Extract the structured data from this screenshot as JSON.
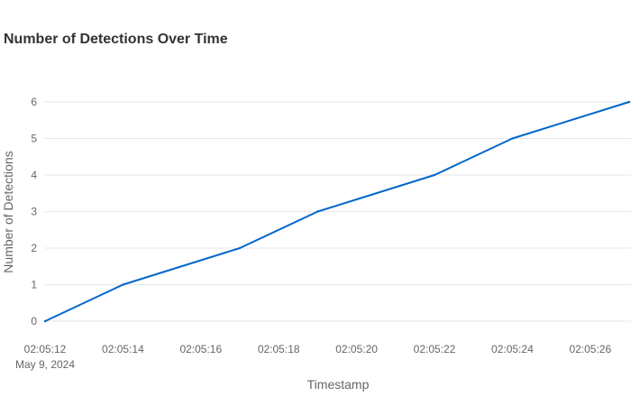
{
  "chart_data": {
    "type": "line",
    "title": "Number of Detections Over Time",
    "xlabel": "Timestamp",
    "ylabel": "Number of Detections",
    "x": [
      "02:05:12",
      "02:05:14",
      "02:05:17",
      "02:05:19",
      "02:05:22",
      "02:05:24",
      "02:05:27"
    ],
    "series": [
      {
        "values": [
          0,
          1,
          2,
          3,
          4,
          5,
          6
        ]
      }
    ],
    "x_ticks": [
      "02:05:12",
      "02:05:14",
      "02:05:16",
      "02:05:18",
      "02:05:20",
      "02:05:22",
      "02:05:24",
      "02:05:26"
    ],
    "x_date_label": "May 9, 2024",
    "y_ticks": [
      0,
      1,
      2,
      3,
      4,
      5,
      6
    ],
    "ylim": [
      0,
      6
    ],
    "grid": "horizontal",
    "line_color": "#0066CC"
  }
}
